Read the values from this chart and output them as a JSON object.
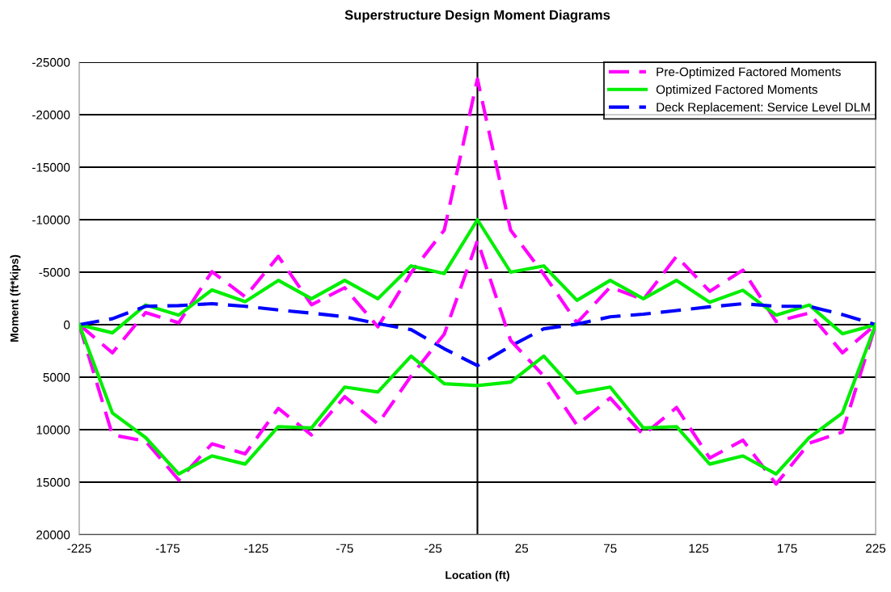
{
  "chart_data": {
    "type": "line",
    "title": "Superstructure Design Moment Diagrams",
    "xlabel": "Location (ft)",
    "ylabel": "Moment (ft*kips)",
    "x": [
      -225,
      -206.25,
      -187.5,
      -168.75,
      -150,
      -131.25,
      -112.5,
      -93.75,
      -75,
      -56.25,
      -37.5,
      -18.75,
      0,
      18.75,
      37.5,
      56.25,
      75,
      93.75,
      112.5,
      131.25,
      150,
      168.75,
      187.5,
      206.25,
      225
    ],
    "series": [
      {
        "name": "Pre-Optimized Factored Moments",
        "color": "#ff00ff",
        "line_style": "dashed",
        "values": [
          0,
          2680,
          -1150,
          -180,
          -5050,
          -2660,
          -6510,
          -1900,
          -3520,
          200,
          -4950,
          -9000,
          -23400,
          -9000,
          -4800,
          -180,
          -3570,
          -2400,
          -6510,
          -3180,
          -5200,
          -300,
          -1100,
          2680,
          0
        ]
      },
      {
        "name": "Optimized Factored Moments",
        "color": "#00ee00",
        "line_style": "solid",
        "values": [
          0,
          780,
          -1875,
          -910,
          -3310,
          -2190,
          -4220,
          -2470,
          -4220,
          -2470,
          -5600,
          -4870,
          -10000,
          -5000,
          -5600,
          -2320,
          -4220,
          -2470,
          -4220,
          -2140,
          -3280,
          -910,
          -1875,
          860,
          0
        ]
      },
      {
        "name": "Deck Replacement: Service Level DLM",
        "color": "#0000ff",
        "line_style": "dashed",
        "values": [
          0,
          -570,
          -1750,
          -1820,
          -2000,
          -1750,
          -1400,
          -1100,
          -750,
          -100,
          470,
          2290,
          3900,
          2030,
          390,
          -50,
          -750,
          -1000,
          -1350,
          -1700,
          -2000,
          -1750,
          -1750,
          -960,
          0
        ]
      },
      {
        "color": "#ff00ff",
        "line_style": "dashed",
        "values": [
          0,
          10500,
          11100,
          14800,
          11350,
          12300,
          7970,
          10500,
          6850,
          9450,
          4900,
          900,
          -8000,
          1500,
          4900,
          9580,
          6980,
          10500,
          7890,
          12700,
          11000,
          15180,
          11280,
          10230,
          0
        ]
      },
      {
        "color": "#00ee00",
        "line_style": "solid",
        "values": [
          0,
          8410,
          10750,
          14220,
          12500,
          13280,
          9710,
          9840,
          5940,
          6410,
          2990,
          5620,
          5800,
          5470,
          2990,
          6510,
          5940,
          9840,
          9710,
          13280,
          12500,
          14220,
          10750,
          8410,
          0
        ]
      }
    ],
    "xlim": [
      -225,
      225
    ],
    "xticks": [
      -225,
      -175,
      -125,
      -75,
      -25,
      25,
      75,
      125,
      175,
      225
    ],
    "ylim": [
      20000,
      -25000
    ],
    "yticks": [
      -25000,
      -20000,
      -15000,
      -10000,
      -5000,
      0,
      5000,
      10000,
      15000,
      20000
    ],
    "ref_lines": [
      {
        "axis": "x",
        "value": 0,
        "color": "#000000"
      }
    ],
    "grid": "y",
    "legend": "top right",
    "marker": "none"
  }
}
